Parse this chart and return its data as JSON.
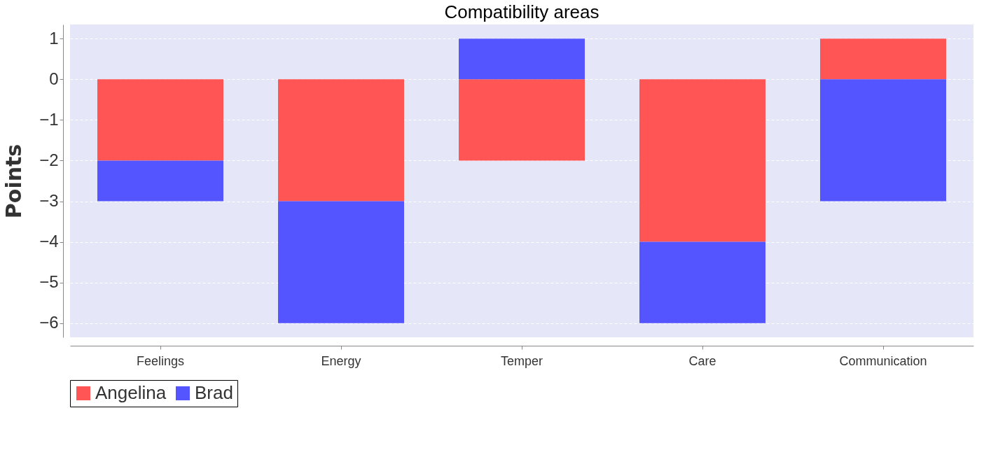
{
  "chart_data": {
    "type": "bar",
    "title": "Compatibility areas",
    "ylabel": "Points",
    "categories": [
      "Feelings",
      "Energy",
      "Temper",
      "Care",
      "Communication"
    ],
    "series": [
      {
        "name": "Angelina",
        "color": "#ff5555",
        "values": [
          -2,
          -3,
          -2,
          -4,
          1
        ]
      },
      {
        "name": "Brad",
        "color": "#5555ff",
        "values": [
          -1,
          -3,
          1,
          -2,
          -3
        ]
      }
    ],
    "stacked": true,
    "ylim": [
      -6.35,
      1.35
    ],
    "yticks": [
      -6,
      -5,
      -4,
      -3,
      -2,
      -1,
      0,
      1
    ],
    "grid": "y",
    "legend": "bottom"
  }
}
